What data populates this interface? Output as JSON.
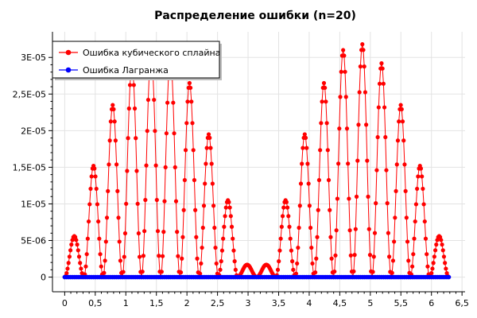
{
  "chart_data": {
    "type": "line",
    "title": "Распределение ошибки (n=20)",
    "xlim": [
      -0.2,
      6.55
    ],
    "ylim": [
      -2e-06,
      3.35e-05
    ],
    "x_ticks": [
      {
        "value": 0,
        "label": "0"
      },
      {
        "value": 0.5,
        "label": "0,5"
      },
      {
        "value": 1,
        "label": "1"
      },
      {
        "value": 1.5,
        "label": "1,5"
      },
      {
        "value": 2,
        "label": "2"
      },
      {
        "value": 2.5,
        "label": "2,5"
      },
      {
        "value": 3,
        "label": "3"
      },
      {
        "value": 3.5,
        "label": "3,5"
      },
      {
        "value": 4,
        "label": "4"
      },
      {
        "value": 4.5,
        "label": "4,5"
      },
      {
        "value": 5,
        "label": "5"
      },
      {
        "value": 5.5,
        "label": "5,5"
      },
      {
        "value": 6,
        "label": "6"
      },
      {
        "value": 6.5,
        "label": "6,5"
      }
    ],
    "y_ticks": [
      {
        "value": 0,
        "label": "0"
      },
      {
        "value": 5e-06,
        "label": "5E-06"
      },
      {
        "value": 1e-05,
        "label": "1E-05"
      },
      {
        "value": 1.5e-05,
        "label": "1,5E-05"
      },
      {
        "value": 2e-05,
        "label": "2E-05"
      },
      {
        "value": 2.5e-05,
        "label": "2,5E-05"
      },
      {
        "value": 3e-05,
        "label": "3E-05"
      }
    ],
    "grid": true,
    "legend_position": "top-left",
    "series": [
      {
        "name": "Ошибка кубического сплайна",
        "color": "#ff0000",
        "marker": "circle",
        "x_range": [
          0,
          6.2832
        ],
        "point_count": 400,
        "hump_peaks": [
          5.6e-06,
          1.52e-05,
          2.35e-05,
          2.9e-05,
          3.05e-05,
          3e-05,
          2.65e-05,
          1.95e-05,
          1.05e-05,
          1.7e-06,
          1.7e-06,
          1.05e-05,
          1.95e-05,
          2.65e-05,
          3.1e-05,
          3.18e-05,
          2.92e-05,
          2.35e-05,
          1.52e-05,
          5.6e-06
        ]
      },
      {
        "name": "Ошибка Лагранжа",
        "color": "#0000ff",
        "marker": "circle",
        "x": [
          0,
          6.2832
        ],
        "y": [
          0,
          0
        ]
      }
    ]
  }
}
